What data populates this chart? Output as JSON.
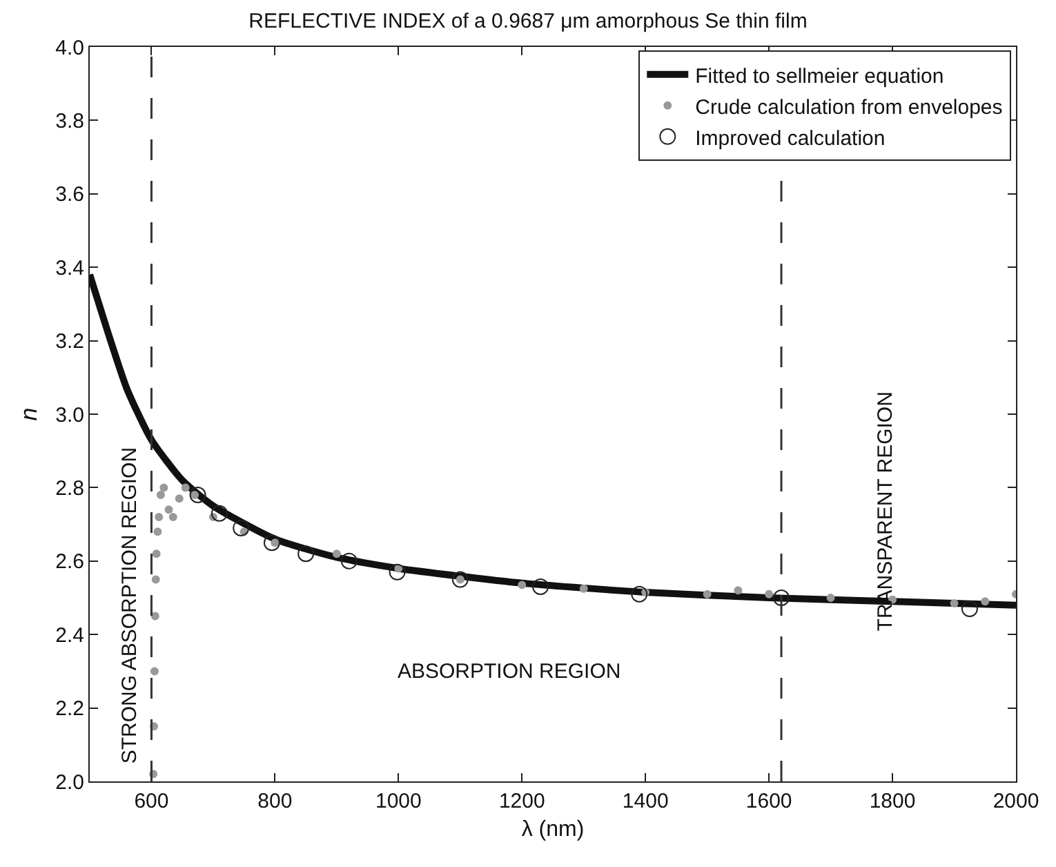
{
  "chart_data": {
    "type": "line",
    "title": "REFLECTIVE INDEX of a 0.9687 μm amorphous Se thin film",
    "xlabel": "λ (nm)",
    "ylabel": "n",
    "xlim": [
      500,
      2000
    ],
    "xticks": [
      600,
      800,
      1000,
      1200,
      1400,
      1600,
      1800,
      2000
    ],
    "ylim": [
      2.0,
      4.0
    ],
    "yticks": [
      {
        "value": 2.0,
        "label": "2.0"
      },
      {
        "value": 2.2,
        "label": "2.2"
      },
      {
        "value": 2.4,
        "label": "2.4"
      },
      {
        "value": 2.6,
        "label": "2.6"
      },
      {
        "value": 2.8,
        "label": "2.8"
      },
      {
        "value": 3.0,
        "label": "3.0"
      },
      {
        "value": 3.2,
        "label": "3.2"
      },
      {
        "value": 3.4,
        "label": "3.4"
      },
      {
        "value": 3.6,
        "label": "3.6"
      },
      {
        "value": 3.8,
        "label": "3.8"
      },
      {
        "value": 4.0,
        "label": "4.0"
      }
    ],
    "legend": "top right",
    "series": [
      {
        "name": "Fitted to sellmeier equation",
        "color": "#111111",
        "marker": "none",
        "x": [
          500,
          530,
          560,
          600,
          650,
          700,
          800,
          900,
          1000,
          1200,
          1400,
          1600,
          1800,
          2000
        ],
        "values": [
          3.38,
          3.22,
          3.07,
          2.93,
          2.82,
          2.75,
          2.66,
          2.61,
          2.58,
          2.54,
          2.515,
          2.5,
          2.49,
          2.48
        ]
      },
      {
        "name": "Crude calculation from envelopes",
        "type": "scatter",
        "color": "#999999",
        "marker": "circle",
        "x": [
          603,
          604,
          605,
          606,
          607,
          608,
          610,
          612,
          615,
          620,
          628,
          635,
          645,
          655,
          670,
          700,
          750,
          800,
          900,
          1000,
          1100,
          1200,
          1300,
          1400,
          1500,
          1550,
          1600,
          1700,
          1800,
          1900,
          1950,
          2000
        ],
        "values": [
          2.02,
          2.15,
          2.3,
          2.45,
          2.55,
          2.62,
          2.68,
          2.72,
          2.78,
          2.8,
          2.74,
          2.72,
          2.77,
          2.8,
          2.78,
          2.72,
          2.68,
          2.65,
          2.62,
          2.58,
          2.55,
          2.535,
          2.525,
          2.515,
          2.51,
          2.52,
          2.51,
          2.5,
          2.495,
          2.485,
          2.49,
          2.51
        ]
      },
      {
        "name": "Improved calculation",
        "type": "scatter",
        "color": "#222222",
        "marker": "circle-open",
        "x": [
          675,
          710,
          745,
          795,
          850,
          920,
          998,
          1100,
          1230,
          1390,
          1620,
          1925
        ],
        "values": [
          2.78,
          2.73,
          2.69,
          2.65,
          2.62,
          2.6,
          2.57,
          2.55,
          2.53,
          2.51,
          2.5,
          2.47
        ]
      }
    ],
    "ref_lines": [
      {
        "axis": "x",
        "value": 600,
        "color": "#333333",
        "line_style": "dashed"
      },
      {
        "axis": "x",
        "value": 1620,
        "color": "#333333",
        "line_style": "dashed"
      }
    ],
    "annotations": [
      "STRONG ABSORPTION REGION",
      "ABSORPTION REGION",
      "TRANSPARENT REGION"
    ]
  }
}
